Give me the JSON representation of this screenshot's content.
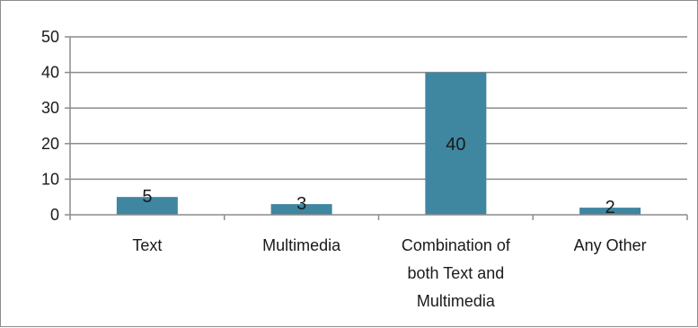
{
  "chart_data": {
    "type": "bar",
    "title": "",
    "xlabel": "",
    "ylabel": "",
    "categories": [
      "Text",
      "Multimedia",
      "Combination of both Text and Multimedia",
      "Any Other"
    ],
    "category_lines": [
      [
        "Text"
      ],
      [
        "Multimedia"
      ],
      [
        "Combination of",
        "both Text and",
        "Multimedia"
      ],
      [
        "Any Other"
      ]
    ],
    "values": [
      5,
      3,
      40,
      2
    ],
    "data_labels": [
      "5",
      "3",
      "40",
      "2"
    ],
    "ylim": [
      0,
      50
    ],
    "yticks": [
      0,
      10,
      20,
      30,
      40,
      50
    ],
    "grid": true,
    "legend": "none",
    "colors": {
      "bar": "#3f86a0",
      "grid": "#8c8c8c",
      "axis": "#8c8c8c",
      "text": "#1a1a1a"
    }
  }
}
